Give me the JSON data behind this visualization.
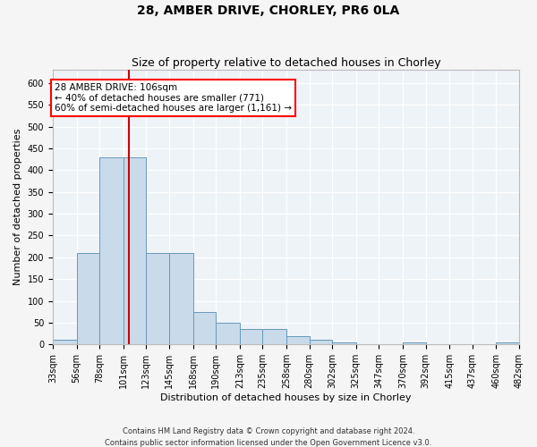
{
  "title_line1": "28, AMBER DRIVE, CHORLEY, PR6 0LA",
  "title_line2": "Size of property relative to detached houses in Chorley",
  "xlabel": "Distribution of detached houses by size in Chorley",
  "ylabel": "Number of detached properties",
  "footnote1": "Contains HM Land Registry data © Crown copyright and database right 2024.",
  "footnote2": "Contains public sector information licensed under the Open Government Licence v3.0.",
  "annotation_line1": "28 AMBER DRIVE: 106sqm",
  "annotation_line2": "← 40% of detached houses are smaller (771)",
  "annotation_line3": "60% of semi-detached houses are larger (1,161) →",
  "bar_color": "#c9daea",
  "bar_edge_color": "#6899bb",
  "vline_color": "#cc0000",
  "vline_x": 106,
  "bin_edges": [
    33,
    56,
    78,
    101,
    123,
    145,
    168,
    190,
    213,
    235,
    258,
    280,
    302,
    325,
    347,
    370,
    392,
    415,
    437,
    460,
    482
  ],
  "bin_labels": [
    "33sqm",
    "56sqm",
    "78sqm",
    "101sqm",
    "123sqm",
    "145sqm",
    "168sqm",
    "190sqm",
    "213sqm",
    "235sqm",
    "258sqm",
    "280sqm",
    "302sqm",
    "325sqm",
    "347sqm",
    "370sqm",
    "392sqm",
    "415sqm",
    "437sqm",
    "460sqm",
    "482sqm"
  ],
  "bar_heights": [
    10,
    210,
    430,
    430,
    210,
    210,
    75,
    50,
    35,
    35,
    20,
    10,
    5,
    0,
    0,
    5,
    0,
    0,
    0,
    5
  ],
  "ylim": [
    0,
    630
  ],
  "yticks": [
    0,
    50,
    100,
    150,
    200,
    250,
    300,
    350,
    400,
    450,
    500,
    550,
    600
  ],
  "background_color": "#eef3f8",
  "grid_color": "#ffffff",
  "fig_bg_color": "#f5f5f5",
  "title_fontsize": 10,
  "subtitle_fontsize": 9,
  "axis_label_fontsize": 8,
  "tick_fontsize": 7,
  "annotation_fontsize": 7.5
}
